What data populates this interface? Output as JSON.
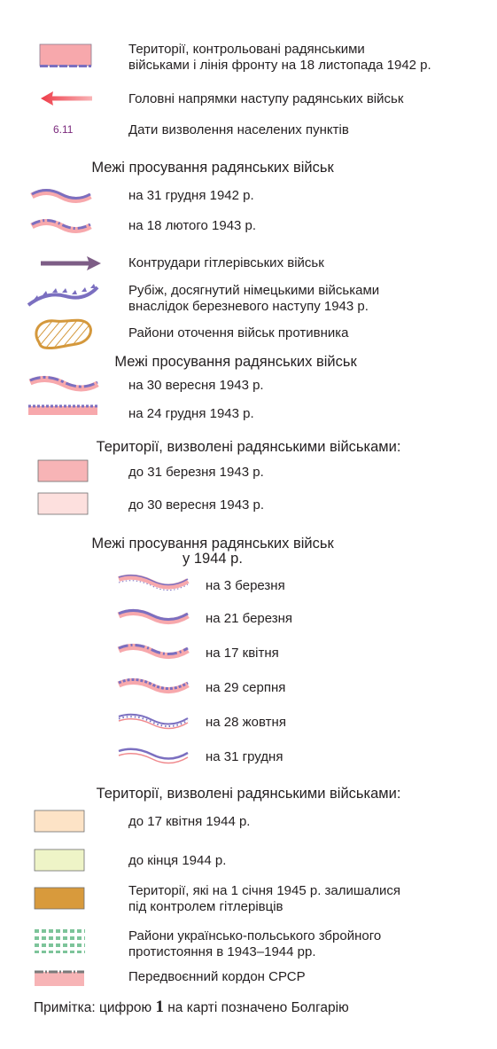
{
  "legend": {
    "items": [
      {
        "id": "soviet-territory",
        "label": "Території, контрольовані радянськими\nвійськами і лінія фронту на 18 листопада 1942 р."
      },
      {
        "id": "main-offensive",
        "label": "Головні напрямки наступу радянських військ"
      },
      {
        "id": "liberation-dates",
        "symbol_text": "6.11",
        "label": "Дати визволення населених пунктів"
      },
      {
        "id": "h1",
        "label": "Межі просування радянських військ"
      },
      {
        "id": "adv-1942-12-31",
        "label": "на 31 грудня 1942 р."
      },
      {
        "id": "adv-1943-02-18",
        "label": "на 18 лютого 1943 р."
      },
      {
        "id": "counterattacks",
        "label": "Контрудари гітлерівських військ"
      },
      {
        "id": "german-line",
        "label": "Рубіж, досягнутий німецькими військами\nвнаслідок березневого наступу 1943 р."
      },
      {
        "id": "encirclement",
        "label": "Райони оточення військ противника"
      },
      {
        "id": "h2",
        "label": "Межі просування радянських військ"
      },
      {
        "id": "adv-1943-09-30",
        "label": "на 30 вересня 1943 р."
      },
      {
        "id": "adv-1943-12-24",
        "label": "на 24 грудня 1943 р."
      },
      {
        "id": "h3",
        "label": "Території, визволені радянськими військами:"
      },
      {
        "id": "lib-1943-03-31",
        "label": "до 31 березня 1943 р."
      },
      {
        "id": "lib-1943-09-30",
        "label": "до 30 вересня 1943 р."
      },
      {
        "id": "h4",
        "label": "Межі просування радянських військ\nу 1944 р."
      },
      {
        "id": "adv-1944-03-03",
        "label": "на 3 березня"
      },
      {
        "id": "adv-1944-03-21",
        "label": "на 21 березня"
      },
      {
        "id": "adv-1944-04-17",
        "label": "на 17 квітня"
      },
      {
        "id": "adv-1944-08-29",
        "label": "на 29 серпня"
      },
      {
        "id": "adv-1944-10-28",
        "label": "на 28 жовтня"
      },
      {
        "id": "adv-1944-12-31",
        "label": "на 31 грудня"
      },
      {
        "id": "h5",
        "label": "Території, визволені радянськими військами:"
      },
      {
        "id": "lib-1944-04-17",
        "label": "до 17 квітня 1944 р."
      },
      {
        "id": "lib-1944-end",
        "label": "до кінця 1944 р."
      },
      {
        "id": "german-1945",
        "label": "Території, які на 1 січня 1945 р. залишалися\nпід контролем гітлерівців"
      },
      {
        "id": "ukr-pol-conflict",
        "label": "Райони українсько-польського збройного\nпротистояння в 1943–1944 рр."
      },
      {
        "id": "border-ussr",
        "label": "Передвоєнний кордон СРСР"
      }
    ],
    "note": {
      "prefix": "Примітка: цифрою ",
      "number": "1",
      "suffix": " на карті позначено Болгарію"
    }
  },
  "colors": {
    "soviet_pink": "#f7a8ac",
    "light_pink": "#fde0de",
    "front_blue": "#7b6fc0",
    "arrow_red": "#ee3b48",
    "counter_arrow": "#7d5d86",
    "encircle_orange": "#d4983c",
    "peach": "#fde3c6",
    "pale_green": "#eef4c7",
    "german_brown": "#d89a3c",
    "dot_green": "#7dc49a",
    "date_purple": "#7b2a7d"
  }
}
